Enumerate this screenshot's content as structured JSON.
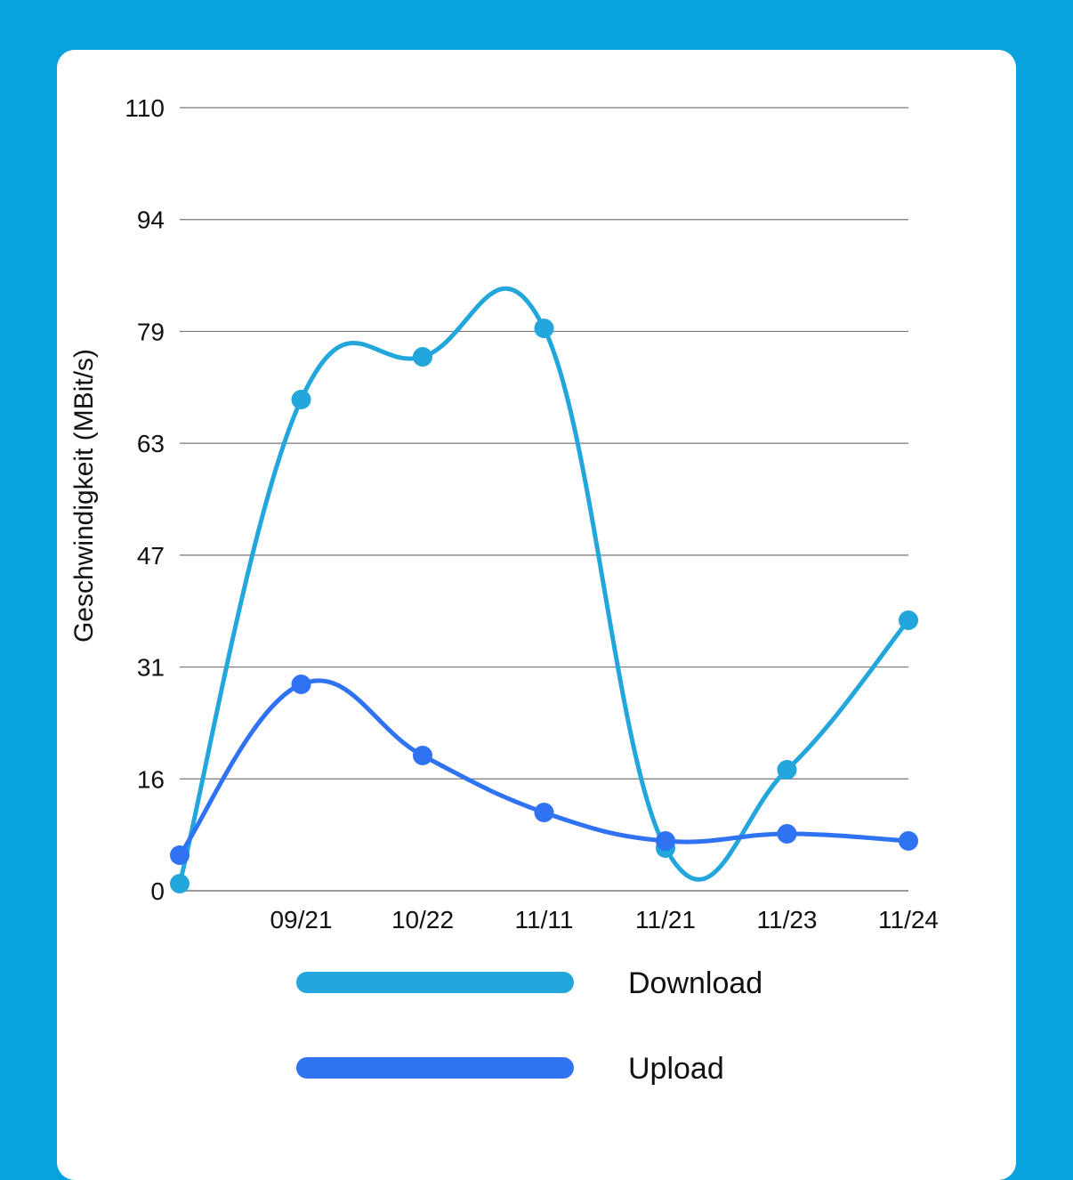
{
  "chart_data": {
    "type": "line",
    "title": "",
    "xlabel": "",
    "ylabel": "Geschwindigkeit (MBit/s)",
    "categories": [
      "",
      "09/21",
      "10/22",
      "11/11",
      "11/21",
      "11/23",
      "11/24"
    ],
    "yticks": [
      "0",
      "16",
      "31",
      "47",
      "63",
      "79",
      "94",
      "110"
    ],
    "ylim": [
      0,
      110
    ],
    "grid": true,
    "legend_position": "bottom",
    "series": [
      {
        "name": "Download",
        "color": "#22A6DC",
        "values": [
          1,
          69,
          75,
          79,
          6,
          17,
          38
        ]
      },
      {
        "name": "Upload",
        "color": "#2F72F2",
        "values": [
          5,
          29,
          19,
          11,
          7,
          8,
          7
        ]
      }
    ]
  }
}
